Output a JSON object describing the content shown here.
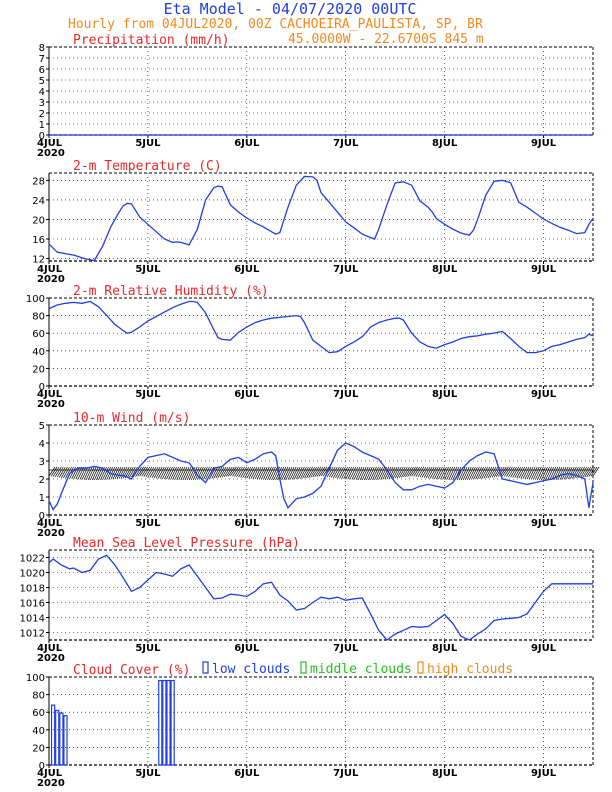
{
  "header": {
    "title": "Eta Model - 04/07/2020 00UTC",
    "subtitle": "Hourly from 04JUL2020, 00Z  CACHOEIRA_PAULISTA, SP, BR",
    "location": "45.0000W - 22.6700S    845  m"
  },
  "colors": {
    "title": "#1f3fe0",
    "subtitle": "#f08a1e",
    "panel_title": "#e8282a",
    "series": "#1f3fe0",
    "low_clouds": "#1f3fe0",
    "middle_clouds": "#22c41c",
    "high_clouds": "#f08a1e",
    "axis": "#000000"
  },
  "chart_data": [
    {
      "id": "precip",
      "type": "line",
      "title": "Precipitation (mm/h)",
      "ylim": [
        0,
        8
      ],
      "yticks": [
        0,
        1,
        2,
        3,
        4,
        5,
        6,
        7,
        8
      ],
      "x": [
        0,
        132
      ],
      "values": [
        0,
        0
      ]
    },
    {
      "id": "temperature",
      "type": "line",
      "title": "2-m Temperature (C)",
      "ylim": [
        11.5,
        29.5
      ],
      "yticks": [
        12,
        16,
        20,
        24,
        28
      ],
      "x": [
        0,
        2,
        6,
        9,
        11,
        13,
        15,
        17,
        18,
        19,
        20,
        22,
        24,
        26,
        28,
        30,
        31,
        32,
        34,
        36,
        38,
        40,
        41,
        42,
        44,
        46,
        48,
        50,
        52,
        54,
        55,
        56,
        58,
        60,
        62,
        64,
        65,
        66,
        68,
        70,
        72,
        74,
        76,
        78,
        79,
        80,
        82,
        84,
        86,
        88,
        90,
        92,
        93,
        94,
        96,
        98,
        100,
        102,
        103,
        104,
        106,
        108,
        110,
        112,
        114,
        116,
        118,
        120,
        122,
        124,
        126,
        128,
        130,
        131,
        132
      ],
      "values": [
        15,
        13.3,
        12.7,
        11.9,
        11.6,
        14.5,
        18.5,
        21.5,
        22.8,
        23.3,
        23.2,
        20.5,
        19,
        17.5,
        16,
        15.3,
        15.4,
        15.3,
        14.8,
        18,
        24,
        26.5,
        26.8,
        26.7,
        23,
        21.5,
        20.3,
        19.3,
        18.5,
        17.5,
        17,
        17.3,
        22.5,
        27,
        28.8,
        28.7,
        28,
        25.5,
        23.5,
        21.5,
        19.5,
        18.3,
        17,
        16.3,
        16,
        18,
        23,
        27.5,
        27.7,
        27,
        23.8,
        22.5,
        21.5,
        20.2,
        19,
        18,
        17.2,
        16.8,
        17.8,
        20,
        25,
        27.8,
        28,
        27.5,
        23.5,
        22.5,
        21.3,
        20.1,
        19.2,
        18.4,
        17.8,
        17.1,
        17.3,
        19,
        20.2
      ]
    },
    {
      "id": "humidity",
      "type": "line",
      "title": "2-m Relative Humidity (%)",
      "ylim": [
        0,
        100
      ],
      "yticks": [
        0,
        20,
        40,
        60,
        80,
        100
      ],
      "x": [
        0,
        2,
        4,
        6,
        8,
        10,
        12,
        14,
        16,
        18,
        19,
        20,
        22,
        24,
        26,
        28,
        30,
        32,
        34,
        35,
        36,
        38,
        40,
        41,
        42,
        44,
        46,
        48,
        50,
        52,
        54,
        56,
        58,
        60,
        61,
        62,
        64,
        66,
        68,
        70,
        72,
        74,
        76,
        77,
        78,
        80,
        82,
        84,
        85,
        86,
        88,
        90,
        92,
        94,
        96,
        98,
        99,
        100,
        102,
        104,
        106,
        108,
        109,
        110,
        112,
        114,
        116,
        118,
        120,
        122,
        124,
        126,
        128,
        130,
        131,
        132
      ],
      "values": [
        88,
        92,
        94,
        95,
        94,
        96,
        90,
        80,
        70,
        63,
        60,
        61,
        67,
        74,
        79,
        84,
        89,
        93,
        96,
        96,
        95,
        83,
        64,
        55,
        53,
        52,
        61,
        67,
        72,
        75,
        77,
        78,
        79,
        80,
        79,
        72,
        52,
        45,
        38,
        39,
        45,
        50,
        56,
        61,
        67,
        72,
        75,
        77,
        77,
        75,
        60,
        50,
        45,
        43,
        47,
        50,
        52,
        54,
        56,
        57,
        59,
        60,
        61,
        62,
        54,
        45,
        38,
        38,
        40,
        45,
        47,
        50,
        53,
        55,
        59,
        57
      ]
    },
    {
      "id": "wind",
      "type": "line",
      "title": "10-m Wind (m/s)",
      "ylim": [
        0,
        5
      ],
      "yticks": [
        0,
        1,
        2,
        3,
        4,
        5
      ],
      "x": [
        0,
        1,
        2,
        3,
        5,
        7,
        9,
        11,
        13,
        15,
        17,
        18,
        19,
        20,
        22,
        24,
        26,
        28,
        30,
        32,
        34,
        35,
        36,
        38,
        40,
        42,
        44,
        46,
        48,
        50,
        52,
        54,
        55,
        56,
        57,
        58,
        60,
        62,
        64,
        66,
        68,
        70,
        72,
        74,
        76,
        78,
        80,
        82,
        84,
        86,
        88,
        90,
        92,
        94,
        96,
        98,
        100,
        102,
        104,
        106,
        108,
        110,
        112,
        114,
        116,
        118,
        120,
        122,
        124,
        126,
        128,
        130,
        131,
        132
      ],
      "values": [
        0.8,
        0.3,
        0.6,
        1.2,
        2.3,
        2.6,
        2.6,
        2.7,
        2.6,
        2.3,
        2.2,
        2.2,
        2.1,
        2.0,
        2.7,
        3.2,
        3.3,
        3.4,
        3.2,
        3.0,
        2.9,
        2.6,
        2.2,
        1.8,
        2.6,
        2.7,
        3.1,
        3.2,
        2.9,
        3.1,
        3.4,
        3.5,
        3.3,
        2.0,
        0.9,
        0.4,
        0.9,
        1.0,
        1.2,
        1.6,
        2.6,
        3.6,
        4.0,
        3.8,
        3.5,
        3.3,
        3.1,
        2.5,
        1.8,
        1.4,
        1.4,
        1.6,
        1.7,
        1.6,
        1.5,
        1.8,
        2.5,
        3.0,
        3.3,
        3.5,
        3.4,
        2.0,
        1.9,
        1.8,
        1.7,
        1.8,
        1.9,
        2.0,
        2.2,
        2.3,
        2.2,
        2.0,
        0.4,
        1.8
      ]
    },
    {
      "id": "pressure",
      "type": "line",
      "title": "Mean Sea Level Pressure (hPa)",
      "ylim": [
        1011,
        1023
      ],
      "yticks": [
        1012,
        1014,
        1016,
        1018,
        1020,
        1022
      ],
      "x": [
        0,
        1,
        3,
        5,
        6,
        8,
        10,
        12,
        14,
        16,
        18,
        20,
        22,
        24,
        26,
        28,
        30,
        32,
        34,
        36,
        38,
        40,
        42,
        44,
        46,
        48,
        50,
        52,
        54,
        56,
        58,
        60,
        62,
        64,
        66,
        68,
        70,
        72,
        74,
        76,
        78,
        80,
        82,
        84,
        86,
        88,
        90,
        92,
        94,
        96,
        98,
        100,
        102,
        104,
        106,
        108,
        110,
        112,
        114,
        116,
        118,
        120,
        122,
        124,
        126,
        128,
        130,
        132
      ],
      "values": [
        1021.3,
        1021.8,
        1021,
        1020.5,
        1020.6,
        1020,
        1020.3,
        1021.8,
        1022.3,
        1021,
        1019.3,
        1017.5,
        1018,
        1019,
        1020,
        1019.8,
        1019.5,
        1020.5,
        1021,
        1019.5,
        1018,
        1016.5,
        1016.6,
        1017.1,
        1017,
        1016.8,
        1017.5,
        1018.5,
        1018.7,
        1017,
        1016.2,
        1015,
        1015.2,
        1016,
        1016.7,
        1016.5,
        1016.7,
        1016.3,
        1016.5,
        1016.6,
        1014.5,
        1012.3,
        1011,
        1011.8,
        1012.3,
        1012.8,
        1012.7,
        1012.8,
        1013.6,
        1014.4,
        1013.2,
        1011.5,
        1010.8,
        1011.8,
        1012.5,
        1013.6,
        1013.8,
        1013.9,
        1014,
        1014.5,
        1016,
        1017.5,
        1018.5,
        1018.5,
        1018.5,
        1018.5,
        1018.5,
        1018.5
      ]
    },
    {
      "id": "cloud",
      "type": "bar",
      "title": "Cloud Cover (%)",
      "ylim": [
        0,
        100
      ],
      "yticks": [
        0,
        20,
        40,
        60,
        80,
        100
      ],
      "legend": [
        "low clouds",
        "middle clouds",
        "high clouds"
      ],
      "bars": [
        {
          "x": 1,
          "value": 68,
          "layer": "low"
        },
        {
          "x": 2,
          "value": 62,
          "layer": "low"
        },
        {
          "x": 3,
          "value": 59,
          "layer": "low"
        },
        {
          "x": 4,
          "value": 56,
          "layer": "low"
        },
        {
          "x": 27,
          "value": 96,
          "layer": "low"
        },
        {
          "x": 28,
          "value": 96,
          "layer": "low"
        },
        {
          "x": 29,
          "value": 96,
          "layer": "low"
        },
        {
          "x": 30,
          "value": 96,
          "layer": "low"
        }
      ]
    }
  ],
  "xaxis": {
    "range_hours": [
      0,
      132
    ],
    "labels": [
      {
        "hour": 0,
        "text": "4JUL"
      },
      {
        "hour": 24,
        "text": "5JUL"
      },
      {
        "hour": 48,
        "text": "6JUL"
      },
      {
        "hour": 72,
        "text": "7JUL"
      },
      {
        "hour": 96,
        "text": "8JUL"
      },
      {
        "hour": 120,
        "text": "9JUL"
      }
    ],
    "year_label": "2020"
  }
}
